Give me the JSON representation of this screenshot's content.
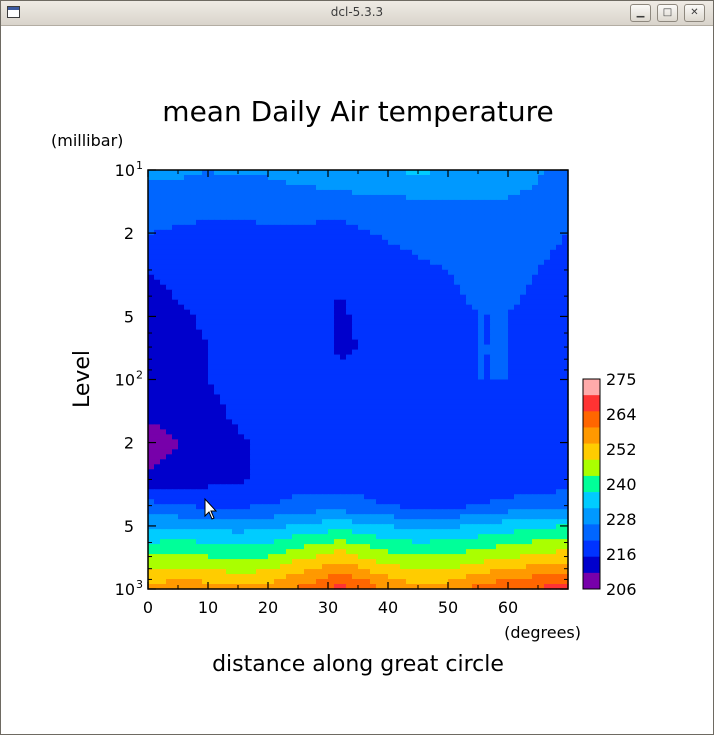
{
  "window": {
    "title": "dcl-5.3.3",
    "minimize_glyph": "▁",
    "maximize_glyph": "□",
    "close_glyph": "✕"
  },
  "chart_data": {
    "type": "heatmap",
    "title": "mean Daily Air temperature",
    "xlabel": "distance along great circle",
    "xunit": "(degrees)",
    "ylabel": "Level",
    "yunit": "(millibar)",
    "y_scale": "log",
    "xlim": [
      0,
      70
    ],
    "ylim": [
      10,
      1000
    ],
    "x_ticks": [
      "0",
      "10",
      "20",
      "30",
      "40",
      "50",
      "60"
    ],
    "y_ticks": [
      {
        "base": "10",
        "exp": "1"
      },
      {
        "base": "2",
        "exp": ""
      },
      {
        "base": "5",
        "exp": ""
      },
      {
        "base": "10",
        "exp": "2"
      },
      {
        "base": "2",
        "exp": ""
      },
      {
        "base": "5",
        "exp": ""
      },
      {
        "base": "10",
        "exp": "3"
      }
    ],
    "colorbar": {
      "labels": [
        "275",
        "264",
        "252",
        "240",
        "228",
        "216",
        "206"
      ],
      "colors": [
        "#ffaaaa",
        "#ff3333",
        "#ff6600",
        "#ff9900",
        "#ffcc00",
        "#aaff00",
        "#00ff99",
        "#00ccff",
        "#0099ff",
        "#0066ff",
        "#0033ff",
        "#0000cc",
        "#7700aa"
      ]
    },
    "x": [
      0,
      5,
      10,
      15,
      20,
      25,
      30,
      32,
      35,
      40,
      45,
      50,
      55,
      60,
      65,
      70
    ],
    "y": [
      10,
      15,
      20,
      30,
      50,
      70,
      100,
      150,
      200,
      300,
      400,
      500,
      600,
      700,
      800,
      900,
      1000
    ],
    "z": [
      [
        229,
        229,
        228,
        229,
        229,
        230,
        231,
        232,
        233,
        234,
        235,
        234,
        233,
        231,
        229,
        224
      ],
      [
        226,
        225,
        224,
        224,
        224,
        225,
        225,
        225,
        225,
        225,
        226,
        227,
        227,
        227,
        226,
        223
      ],
      [
        222,
        221,
        220,
        220,
        221,
        221,
        219,
        219,
        221,
        223,
        224,
        225,
        225,
        225,
        223,
        222
      ],
      [
        216,
        218,
        219,
        219,
        219,
        218,
        217,
        217,
        218,
        219,
        221,
        222,
        223,
        223,
        222,
        221
      ],
      [
        213,
        215,
        217,
        218,
        218,
        218,
        217,
        215,
        217,
        218,
        220,
        221,
        222,
        222,
        221,
        220
      ],
      [
        213,
        214,
        216,
        218,
        219,
        218,
        217,
        215,
        216,
        219,
        220,
        221,
        222,
        222,
        221,
        220
      ],
      [
        213,
        214,
        216,
        218,
        219,
        219,
        218,
        217,
        218,
        220,
        221,
        222,
        222,
        222,
        221,
        220
      ],
      [
        212,
        213,
        214,
        217,
        219,
        220,
        219,
        218,
        219,
        221,
        221,
        221,
        220,
        220,
        218,
        218
      ],
      [
        208,
        211,
        213,
        215,
        217,
        218,
        218,
        217,
        218,
        219,
        218,
        217,
        217,
        218,
        217,
        216
      ],
      [
        212,
        213,
        214,
        215,
        218,
        219,
        219,
        219,
        219,
        218,
        217,
        217,
        217,
        217,
        218,
        218
      ],
      [
        224,
        222,
        221,
        221,
        222,
        224,
        225,
        224,
        224,
        222,
        220,
        220,
        222,
        224,
        226,
        227
      ],
      [
        233,
        233,
        232,
        231,
        232,
        235,
        237,
        238,
        236,
        234,
        232,
        233,
        235,
        237,
        239,
        240
      ],
      [
        240,
        241,
        240,
        239,
        240,
        244,
        246,
        248,
        245,
        242,
        240,
        241,
        243,
        245,
        247,
        249
      ],
      [
        246,
        247,
        246,
        245,
        246,
        250,
        253,
        255,
        252,
        248,
        246,
        247,
        249,
        251,
        253,
        255
      ],
      [
        251,
        253,
        252,
        250,
        251,
        256,
        260,
        262,
        259,
        254,
        251,
        252,
        255,
        258,
        260,
        262
      ],
      [
        256,
        258,
        257,
        255,
        256,
        261,
        265,
        268,
        265,
        259,
        256,
        257,
        261,
        264,
        266,
        268
      ],
      [
        260,
        262,
        261,
        259,
        260,
        265,
        269,
        272,
        269,
        263,
        260,
        261,
        266,
        269,
        271,
        273
      ]
    ],
    "levels": [
      206,
      211,
      216,
      222,
      228,
      234,
      240,
      246,
      252,
      258,
      264,
      270,
      275,
      285
    ],
    "fill_colors": [
      "#7700aa",
      "#0000cc",
      "#0033ff",
      "#0066ff",
      "#0099ff",
      "#00ccff",
      "#00ff99",
      "#aaff00",
      "#ffcc00",
      "#ff9900",
      "#ff6600",
      "#ff3333",
      "#ffaaaa"
    ]
  }
}
